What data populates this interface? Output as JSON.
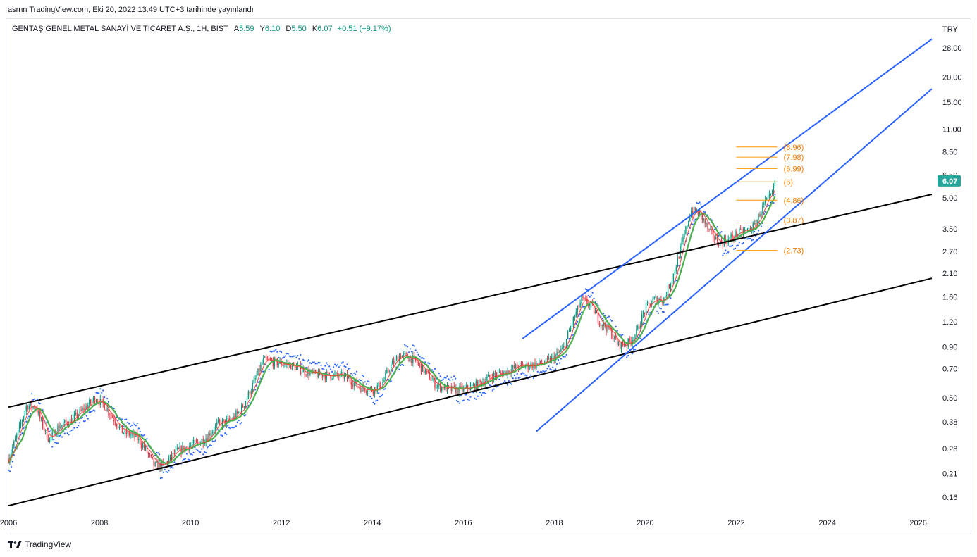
{
  "header": {
    "publish_line": "asrnn TradingView.com, Eki 20, 2022 13:49 UTC+3 tarihinde yayınlandı"
  },
  "legend": {
    "symbol": "GENTAŞ GENEL METAL SANAYİ VE TİCARET A.Ş., 1H, BIST",
    "open_key": "A",
    "open": "5.59",
    "high_key": "Y",
    "high": "6.10",
    "low_key": "D",
    "low": "5.50",
    "close_key": "K",
    "close": "6.07",
    "change": "+0.51 (+9.17%)"
  },
  "brand": {
    "label": "TradingView"
  },
  "colors": {
    "up": "#089981",
    "down": "#f23645",
    "ma_fast": "#f44336",
    "ma_slow": "#4caf50",
    "channel_black": "#000000",
    "channel_blue": "#2962ff",
    "fib": "#ff9800",
    "price_tag": "#26a69a"
  },
  "chart_data": {
    "type": "candlestick",
    "scale": "log",
    "currency_label": "TRY",
    "y_ticks": [
      "28.00",
      "20.00",
      "15.00",
      "11.00",
      "8.50",
      "6.50",
      "5.00",
      "3.50",
      "2.70",
      "2.10",
      "1.60",
      "1.20",
      "0.90",
      "0.70",
      "0.50",
      "0.38",
      "0.28",
      "0.21",
      "0.16"
    ],
    "x_ticks": [
      "2006",
      "2008",
      "2010",
      "2012",
      "2014",
      "2016",
      "2018",
      "2020",
      "2022",
      "2024",
      "2026"
    ],
    "last_price": "6.07",
    "fib_levels": [
      "(8.96)",
      "(7.98)",
      "(6.99)",
      "(6)",
      "(4.86)",
      "(3.87)",
      "(2.73)"
    ],
    "fib_values": [
      8.96,
      7.98,
      6.99,
      6.0,
      4.86,
      3.87,
      2.73
    ],
    "fib_date_range": [
      2022.0,
      2022.9
    ],
    "price_path": [
      [
        2006.0,
        0.25
      ],
      [
        2006.2,
        0.33
      ],
      [
        2006.4,
        0.46
      ],
      [
        2006.6,
        0.45
      ],
      [
        2006.8,
        0.34
      ],
      [
        2006.9,
        0.31
      ],
      [
        2007.1,
        0.36
      ],
      [
        2007.4,
        0.39
      ],
      [
        2007.7,
        0.45
      ],
      [
        2007.9,
        0.5
      ],
      [
        2008.1,
        0.46
      ],
      [
        2008.3,
        0.4
      ],
      [
        2008.5,
        0.34
      ],
      [
        2008.8,
        0.32
      ],
      [
        2009.0,
        0.28
      ],
      [
        2009.2,
        0.23
      ],
      [
        2009.4,
        0.23
      ],
      [
        2009.7,
        0.27
      ],
      [
        2010.0,
        0.29
      ],
      [
        2010.3,
        0.31
      ],
      [
        2010.6,
        0.37
      ],
      [
        2010.9,
        0.39
      ],
      [
        2011.1,
        0.43
      ],
      [
        2011.4,
        0.6
      ],
      [
        2011.6,
        0.77
      ],
      [
        2011.9,
        0.75
      ],
      [
        2012.2,
        0.73
      ],
      [
        2012.5,
        0.68
      ],
      [
        2012.8,
        0.65
      ],
      [
        2013.1,
        0.65
      ],
      [
        2013.4,
        0.64
      ],
      [
        2013.7,
        0.57
      ],
      [
        2014.0,
        0.55
      ],
      [
        2014.2,
        0.58
      ],
      [
        2014.4,
        0.72
      ],
      [
        2014.6,
        0.82
      ],
      [
        2014.9,
        0.78
      ],
      [
        2015.1,
        0.7
      ],
      [
        2015.4,
        0.58
      ],
      [
        2015.7,
        0.55
      ],
      [
        2016.0,
        0.55
      ],
      [
        2016.3,
        0.58
      ],
      [
        2016.6,
        0.64
      ],
      [
        2016.9,
        0.67
      ],
      [
        2017.2,
        0.72
      ],
      [
        2017.5,
        0.73
      ],
      [
        2017.8,
        0.75
      ],
      [
        2018.0,
        0.8
      ],
      [
        2018.2,
        0.88
      ],
      [
        2018.4,
        1.2
      ],
      [
        2018.6,
        1.55
      ],
      [
        2018.8,
        1.45
      ],
      [
        2019.0,
        1.2
      ],
      [
        2019.2,
        1.1
      ],
      [
        2019.4,
        0.92
      ],
      [
        2019.6,
        0.93
      ],
      [
        2019.8,
        1.05
      ],
      [
        2020.0,
        1.4
      ],
      [
        2020.2,
        1.55
      ],
      [
        2020.4,
        1.55
      ],
      [
        2020.6,
        2.0
      ],
      [
        2020.8,
        2.9
      ],
      [
        2021.0,
        4.3
      ],
      [
        2021.2,
        4.2
      ],
      [
        2021.4,
        3.4
      ],
      [
        2021.6,
        3.0
      ],
      [
        2021.8,
        3.05
      ],
      [
        2022.0,
        3.3
      ],
      [
        2022.2,
        3.4
      ],
      [
        2022.4,
        3.6
      ],
      [
        2022.6,
        4.6
      ],
      [
        2022.8,
        5.2
      ],
      [
        2022.85,
        6.07
      ]
    ],
    "trend_lines": [
      {
        "color": "black",
        "from": [
          2006.0,
          0.45
        ],
        "to": [
          2026.3,
          5.2
        ]
      },
      {
        "color": "black",
        "from": [
          2006.0,
          0.145
        ],
        "to": [
          2026.3,
          1.98
        ]
      },
      {
        "color": "blue",
        "from": [
          2017.3,
          0.99
        ],
        "to": [
          2026.3,
          31.0
        ]
      },
      {
        "color": "blue",
        "from": [
          2017.6,
          0.34
        ],
        "to": [
          2026.3,
          17.5
        ]
      }
    ]
  }
}
